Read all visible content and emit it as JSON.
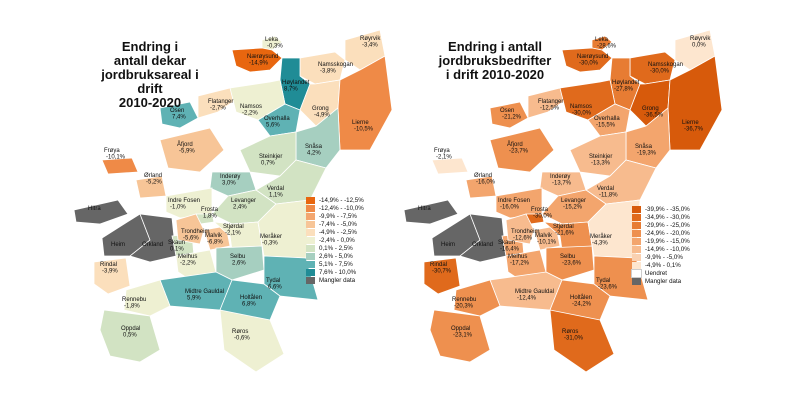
{
  "maps": [
    {
      "title_lines": [
        "Endring i",
        "antall dekar",
        "jordbruksareal i drift",
        "2010-2020"
      ],
      "legend": [
        {
          "label": "-14,9% - -12,5%",
          "color": "#e8660f"
        },
        {
          "label": "-12,4% - -10,0%",
          "color": "#ef8a47"
        },
        {
          "label": "-9,9% - -7,5%",
          "color": "#f3a66f"
        },
        {
          "label": "-7,4% - -5,0%",
          "color": "#f7c597"
        },
        {
          "label": "-4,9% - -2,5%",
          "color": "#fbdfbc"
        },
        {
          "label": "-2,4% - 0,0%",
          "color": "#eef0d2"
        },
        {
          "label": "0,1% - 2,5%",
          "color": "#d2e3c3"
        },
        {
          "label": "2,6% - 5,0%",
          "color": "#a6cfc0"
        },
        {
          "label": "5,1% - 7,5%",
          "color": "#5fb2b4"
        },
        {
          "label": "7,6% - 10,0%",
          "color": "#208c96"
        },
        {
          "label": "Mangler data",
          "color": "#666666"
        }
      ],
      "municipalities": [
        {
          "name": "Leka",
          "value": "-0,3%",
          "color": "#eef0d2"
        },
        {
          "name": "Nærøysund",
          "value": "-14,9%",
          "color": "#e8660f"
        },
        {
          "name": "Namsskogan",
          "value": "-3,8%",
          "color": "#fbdfbc"
        },
        {
          "name": "Røyrvik",
          "value": "-3,4%",
          "color": "#fbdfbc"
        },
        {
          "name": "Høylandet",
          "value": "8,7%",
          "color": "#208c96"
        },
        {
          "name": "Grong",
          "value": "-4,9%",
          "color": "#fbdfbc"
        },
        {
          "name": "Osen",
          "value": "7,4%",
          "color": "#5fb2b4"
        },
        {
          "name": "Flatanger",
          "value": "-2,7%",
          "color": "#fbdfbc"
        },
        {
          "name": "Namsos",
          "value": "-2,2%",
          "color": "#eef0d2"
        },
        {
          "name": "Overhalla",
          "value": "5,6%",
          "color": "#5fb2b4"
        },
        {
          "name": "Lierne",
          "value": "-10,5%",
          "color": "#ef8a47"
        },
        {
          "name": "Frøya",
          "value": "-10,1%",
          "color": "#ef8a47"
        },
        {
          "name": "Åfjord",
          "value": "-5,9%",
          "color": "#f7c597"
        },
        {
          "name": "Snåsa",
          "value": "4,2%",
          "color": "#a6cfc0"
        },
        {
          "name": "Steinkjer",
          "value": "0,7%",
          "color": "#d2e3c3"
        },
        {
          "name": "Ørland",
          "value": "-5,2%",
          "color": "#f7c597"
        },
        {
          "name": "Inderøy",
          "value": "3,0%",
          "color": "#a6cfc0"
        },
        {
          "name": "Verdal",
          "value": "1,1%",
          "color": "#d2e3c3"
        },
        {
          "name": "Indre Fosen",
          "value": "-1,0%",
          "color": "#eef0d2"
        },
        {
          "name": "Levanger",
          "value": "2,4%",
          "color": "#d2e3c3"
        },
        {
          "name": "Frosta",
          "value": "1,8%",
          "color": "#d2e3c3"
        },
        {
          "name": "Hitra",
          "value": "",
          "color": "#666666"
        },
        {
          "name": "Heim",
          "value": "",
          "color": "#666666"
        },
        {
          "name": "Orkland",
          "value": "",
          "color": "#666666"
        },
        {
          "name": "Skaun",
          "value": "0,1%",
          "color": "#d2e3c3"
        },
        {
          "name": "Trondheim",
          "value": "-5,6%",
          "color": "#f7c597"
        },
        {
          "name": "Malvik",
          "value": "-6,8%",
          "color": "#f7c597"
        },
        {
          "name": "Stjørdal",
          "value": "-2,1%",
          "color": "#eef0d2"
        },
        {
          "name": "Meråker",
          "value": "-0,3%",
          "color": "#eef0d2"
        },
        {
          "name": "Rindal",
          "value": "-3,9%",
          "color": "#fbdfbc"
        },
        {
          "name": "Melhus",
          "value": "-2,2%",
          "color": "#eef0d2"
        },
        {
          "name": "Selbu",
          "value": "2,6%",
          "color": "#a6cfc0"
        },
        {
          "name": "Tydal",
          "value": "6,6%",
          "color": "#5fb2b4"
        },
        {
          "name": "Midtre Gauldal",
          "value": "5,9%",
          "color": "#5fb2b4"
        },
        {
          "name": "Holtålen",
          "value": "6,8%",
          "color": "#5fb2b4"
        },
        {
          "name": "Rennebu",
          "value": "-1,8%",
          "color": "#eef0d2"
        },
        {
          "name": "Oppdal",
          "value": "0,5%",
          "color": "#d2e3c3"
        },
        {
          "name": "Røros",
          "value": "-0,6%",
          "color": "#eef0d2"
        }
      ]
    },
    {
      "title_lines": [
        "Endring i antall",
        "jordbruksbedrifter",
        "i drift 2010-2020"
      ],
      "legend": [
        {
          "label": "-39,9% - -35,0%",
          "color": "#d75a0b"
        },
        {
          "label": "-34,9% - -30,0%",
          "color": "#e06a1c"
        },
        {
          "label": "-29,9% - -25,0%",
          "color": "#e77c33"
        },
        {
          "label": "-24,9% - -20,0%",
          "color": "#ee904f"
        },
        {
          "label": "-19,9% - -15,0%",
          "color": "#f3a56d"
        },
        {
          "label": "-14,9% - -10,0%",
          "color": "#f7bb8e"
        },
        {
          "label": "-9,9% - -5,0%",
          "color": "#fad1b1"
        },
        {
          "label": "-4,9% - 0,1%",
          "color": "#fde6cf"
        },
        {
          "label": "Uendret",
          "color": "#ffffff"
        },
        {
          "label": "Mangler data",
          "color": "#666666"
        }
      ],
      "municipalities": [
        {
          "name": "Leka",
          "value": "-28,6%",
          "color": "#e77c33"
        },
        {
          "name": "Nærøysund",
          "value": "-30,0%",
          "color": "#e06a1c"
        },
        {
          "name": "Namsskogan",
          "value": "-30,0%",
          "color": "#e06a1c"
        },
        {
          "name": "Røyrvik",
          "value": "0,0%",
          "color": "#fde6cf"
        },
        {
          "name": "Høylandet",
          "value": "-27,8%",
          "color": "#e77c33"
        },
        {
          "name": "Grong",
          "value": "-36,5%",
          "color": "#d75a0b"
        },
        {
          "name": "Osen",
          "value": "-21,2%",
          "color": "#ee904f"
        },
        {
          "name": "Flatanger",
          "value": "-12,5%",
          "color": "#f7bb8e"
        },
        {
          "name": "Namsos",
          "value": "-30,0%",
          "color": "#e06a1c"
        },
        {
          "name": "Overhalla",
          "value": "-15,5%",
          "color": "#f3a56d"
        },
        {
          "name": "Lierne",
          "value": "-36,7%",
          "color": "#d75a0b"
        },
        {
          "name": "Frøya",
          "value": "-2,1%",
          "color": "#fde6cf"
        },
        {
          "name": "Åfjord",
          "value": "-23,7%",
          "color": "#ee904f"
        },
        {
          "name": "Snåsa",
          "value": "-19,3%",
          "color": "#f3a56d"
        },
        {
          "name": "Steinkjer",
          "value": "-13,3%",
          "color": "#f7bb8e"
        },
        {
          "name": "Ørland",
          "value": "-16,0%",
          "color": "#f3a56d"
        },
        {
          "name": "Inderøy",
          "value": "-13,7%",
          "color": "#f7bb8e"
        },
        {
          "name": "Verdal",
          "value": "-11,8%",
          "color": "#f7bb8e"
        },
        {
          "name": "Indre Fosen",
          "value": "-16,0%",
          "color": "#f3a56d"
        },
        {
          "name": "Levanger",
          "value": "-15,2%",
          "color": "#f3a56d"
        },
        {
          "name": "Frosta",
          "value": "-30,0%",
          "color": "#e06a1c"
        },
        {
          "name": "Hitra",
          "value": "",
          "color": "#666666"
        },
        {
          "name": "Heim",
          "value": "",
          "color": "#666666"
        },
        {
          "name": "Orkland",
          "value": "",
          "color": "#666666"
        },
        {
          "name": "Skaun",
          "value": "-16,4%",
          "color": "#f3a56d"
        },
        {
          "name": "Trondheim",
          "value": "-12,6%",
          "color": "#f7bb8e"
        },
        {
          "name": "Malvik",
          "value": "-10,1%",
          "color": "#f7bb8e"
        },
        {
          "name": "Stjørdal",
          "value": "-21,6%",
          "color": "#ee904f"
        },
        {
          "name": "Meråker",
          "value": "-4,3%",
          "color": "#fde6cf"
        },
        {
          "name": "Rindal",
          "value": "-30,7%",
          "color": "#e06a1c"
        },
        {
          "name": "Melhus",
          "value": "-17,2%",
          "color": "#f3a56d"
        },
        {
          "name": "Selbu",
          "value": "-23,6%",
          "color": "#ee904f"
        },
        {
          "name": "Tydal",
          "value": "-23,6%",
          "color": "#ee904f"
        },
        {
          "name": "Midtre Gauldal",
          "value": "-12,4%",
          "color": "#f7bb8e"
        },
        {
          "name": "Holtålen",
          "value": "-24,2%",
          "color": "#ee904f"
        },
        {
          "name": "Rennebu",
          "value": "-20,3%",
          "color": "#ee904f"
        },
        {
          "name": "Oppdal",
          "value": "-23,1%",
          "color": "#ee904f"
        },
        {
          "name": "Røros",
          "value": "-31,0%",
          "color": "#e06a1c"
        }
      ]
    }
  ]
}
